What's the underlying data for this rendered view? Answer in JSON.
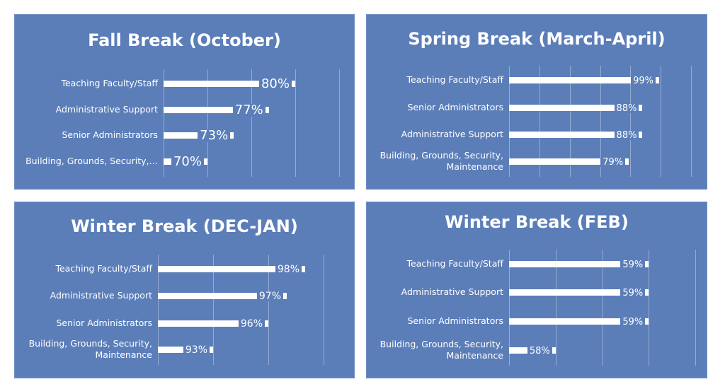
{
  "chart_data": [
    {
      "type": "bar",
      "orientation": "horizontal",
      "title": "Fall Break (October)",
      "categories": [
        "Teaching Faculty/Staff",
        "Administrative Support",
        "Senior Administrators",
        "Building, Grounds, Security,…"
      ],
      "values": [
        80,
        77,
        73,
        70
      ],
      "value_labels": [
        "80%",
        "77%",
        "73%",
        "70%"
      ],
      "color": "#ffffff",
      "xlim": [
        65,
        85
      ],
      "xticks": [
        65,
        70,
        75,
        80,
        85
      ],
      "grid": true
    },
    {
      "type": "bar",
      "orientation": "horizontal",
      "title": "Spring Break (March-April)",
      "categories": [
        "Teaching Faculty/Staff",
        "Senior Administrators",
        "Administrative Support",
        "Building, Grounds, Security, Maintenance"
      ],
      "values": [
        99,
        88,
        88,
        79
      ],
      "value_labels": [
        "99%",
        "88%",
        "88%",
        "79%"
      ],
      "color": "#ffffff",
      "xlim": [
        0,
        120
      ],
      "xticks": [
        0,
        20,
        40,
        60,
        80,
        100,
        120
      ],
      "grid": true
    },
    {
      "type": "bar",
      "orientation": "horizontal",
      "title": "Winter Break (DEC-JAN)",
      "categories": [
        "Teaching Faculty/Staff",
        "Administrative Support",
        "Senior Administrators",
        "Building, Grounds, Security, Maintenance"
      ],
      "values": [
        98,
        97,
        96,
        93
      ],
      "value_labels": [
        "98%",
        "97%",
        "96%",
        "93%"
      ],
      "color": "#ffffff",
      "xlim": [
        90,
        99
      ],
      "xticks": [
        90,
        93,
        96,
        99
      ],
      "grid": true
    },
    {
      "type": "bar",
      "orientation": "horizontal",
      "title": "Winter Break (FEB)",
      "categories": [
        "Teaching Faculty/Staff",
        "Administrative Support",
        "Senior Administrators",
        "Building, Grounds, Security, Maintenance"
      ],
      "values": [
        59,
        59,
        59,
        58
      ],
      "value_labels": [
        "59%",
        "59%",
        "59%",
        "58%"
      ],
      "color": "#ffffff",
      "xlim": [
        57.5,
        59.5
      ],
      "xticks": [
        57.5,
        58,
        58.5,
        59,
        59.5
      ],
      "grid": true
    }
  ]
}
